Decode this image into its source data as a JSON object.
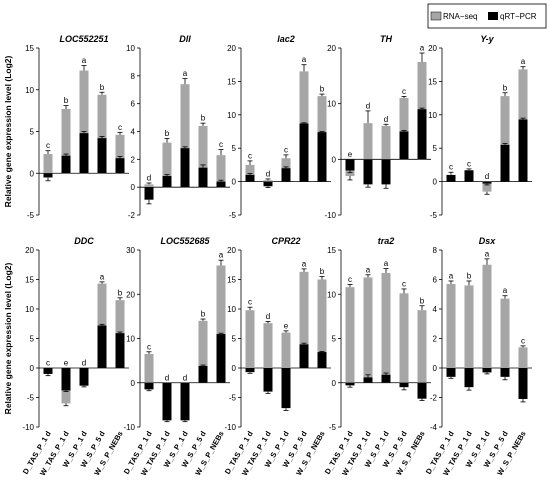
{
  "legend": {
    "rna_label": "RNA−seq",
    "qrt_label": "qRT−PCR",
    "rna_color": "#a6a6a6",
    "qrt_color": "#000000"
  },
  "ylabel": "Relative gene expression level (Log2)",
  "categories": [
    "D_TAS_P_1 d",
    "W_TAS_P_1 d",
    "W_S_P_1 d",
    "W_S_P_5 d",
    "W_S_P_NEBs"
  ],
  "chart_data": [
    {
      "type": "bar",
      "title": "LOC552251",
      "ylim": [
        -5,
        15
      ],
      "yticks": [
        -5,
        0,
        5,
        10,
        15
      ],
      "categories": [
        "D_TAS_P_1 d",
        "W_TAS_P_1 d",
        "W_S_P_1 d",
        "W_S_P_5 d",
        "W_S_P_NEBs"
      ],
      "series": [
        {
          "name": "RNA−seq",
          "values": [
            2.3,
            7.7,
            12.3,
            9.4,
            4.6
          ],
          "errors": [
            0.4,
            0.4,
            0.6,
            0.3,
            0.3
          ]
        },
        {
          "name": "qRT−PCR",
          "values": [
            -0.5,
            2.1,
            4.8,
            4.2,
            1.8
          ],
          "errors": [
            0.4,
            0.2,
            0.2,
            0.2,
            0.2
          ]
        }
      ],
      "labels": [
        "c",
        "b",
        "a",
        "b",
        "c"
      ]
    },
    {
      "type": "bar",
      "title": "Dll",
      "ylim": [
        -2,
        10
      ],
      "yticks": [
        -2,
        0,
        2,
        4,
        6,
        8,
        10
      ],
      "categories": [
        "D_TAS_P_1 d",
        "W_TAS_P_1 d",
        "W_S_P_1 d",
        "W_S_P_5 d",
        "W_S_P_NEBs"
      ],
      "series": [
        {
          "name": "RNA−seq",
          "values": [
            0.2,
            3.2,
            7.4,
            4.4,
            2.3
          ],
          "errors": [
            0.1,
            0.3,
            0.4,
            0.2,
            0.4
          ]
        },
        {
          "name": "qRT−PCR",
          "values": [
            -0.9,
            0.8,
            2.8,
            1.4,
            0.4
          ],
          "errors": [
            0.3,
            0.1,
            0.1,
            0.2,
            0.1
          ]
        }
      ],
      "labels": [
        "d",
        "b",
        "a",
        "b",
        "c"
      ]
    },
    {
      "type": "bar",
      "title": "lac2",
      "ylim": [
        -5,
        20
      ],
      "yticks": [
        -5,
        0,
        5,
        10,
        15,
        20
      ],
      "categories": [
        "D_TAS_P_1 d",
        "W_TAS_P_1 d",
        "W_S_P_1 d",
        "W_S_P_5 d",
        "W_S_P_NEBs"
      ],
      "series": [
        {
          "name": "RNA−seq",
          "values": [
            2.5,
            0.2,
            3.5,
            16.5,
            12.8
          ],
          "errors": [
            0.6,
            0.2,
            0.5,
            1.0,
            0.3
          ]
        },
        {
          "name": "qRT−PCR",
          "values": [
            1.0,
            -0.7,
            2.0,
            8.7,
            7.4
          ],
          "errors": [
            0.2,
            0.2,
            0.2,
            0.1,
            0.1
          ]
        }
      ],
      "labels": [
        "c",
        "d",
        "c",
        "a",
        "b"
      ]
    },
    {
      "type": "bar",
      "title": "TH",
      "ylim": [
        -10,
        20
      ],
      "yticks": [
        -10,
        0,
        10,
        20
      ],
      "categories": [
        "D_TAS_P_1 d",
        "W_TAS_P_1 d",
        "W_S_P_1 d",
        "W_S_P_5 d",
        "W_S_P_NEBs"
      ],
      "series": [
        {
          "name": "RNA−seq",
          "values": [
            -3.0,
            6.5,
            6.0,
            11.0,
            17.5
          ],
          "errors": [
            0.7,
            2.2,
            0.3,
            0.3,
            1.6
          ]
        },
        {
          "name": "qRT−PCR",
          "values": [
            -2.0,
            -4.5,
            -4.5,
            5.0,
            9.0
          ],
          "errors": [
            0.4,
            0.5,
            0.7,
            0.2,
            0.2
          ]
        }
      ],
      "labels": [
        "e",
        "d",
        "d",
        "c",
        "a"
      ]
    },
    {
      "type": "bar",
      "title": "Y-y",
      "ylim": [
        -5,
        20
      ],
      "yticks": [
        -5,
        0,
        5,
        10,
        15,
        20
      ],
      "categories": [
        "D_TAS_P_1 d",
        "W_TAS_P_1 d",
        "W_S_P_1 d",
        "W_S_P_5 d",
        "W_S_P_NEBs"
      ],
      "series": [
        {
          "name": "RNA−seq",
          "values": [
            0.3,
            0.5,
            -1.5,
            12.8,
            16.8
          ],
          "errors": [
            0.1,
            0.2,
            0.4,
            0.5,
            0.4
          ]
        },
        {
          "name": "qRT−PCR",
          "values": [
            1.0,
            1.7,
            -0.3,
            5.5,
            9.3
          ],
          "errors": [
            0.4,
            0.2,
            0.2,
            0.2,
            0.2
          ]
        }
      ],
      "labels": [
        "c",
        "c",
        "d",
        "b",
        "a"
      ]
    },
    {
      "type": "bar",
      "title": "DDC",
      "ylim": [
        -10,
        20
      ],
      "yticks": [
        -10,
        -5,
        0,
        5,
        10,
        15,
        20
      ],
      "categories": [
        "D_TAS_P_1 d",
        "W_TAS_P_1 d",
        "W_S_P_1 d",
        "W_S_P_5 d",
        "W_S_P_NEBs"
      ],
      "series": [
        {
          "name": "RNA−seq",
          "values": [
            -0.7,
            -6.0,
            -2.5,
            14.3,
            11.5
          ],
          "errors": [
            0.2,
            0.4,
            0.3,
            0.3,
            0.4
          ]
        },
        {
          "name": "qRT−PCR",
          "values": [
            -1.0,
            -3.8,
            -3.0,
            7.2,
            5.9
          ],
          "errors": [
            0.3,
            0.2,
            0.2,
            0.2,
            0.2
          ]
        }
      ],
      "labels": [
        "c",
        "e",
        "d",
        "a",
        "b"
      ]
    },
    {
      "type": "bar",
      "title": "LOC552685",
      "ylim": [
        -10,
        30
      ],
      "yticks": [
        -10,
        0,
        10,
        20,
        30
      ],
      "categories": [
        "D_TAS_P_1 d",
        "W_TAS_P_1 d",
        "W_S_P_1 d",
        "W_S_P_5 d",
        "W_S_P_NEBs"
      ],
      "series": [
        {
          "name": "RNA−seq",
          "values": [
            6.5,
            -0.5,
            -0.5,
            14.0,
            26.5
          ],
          "errors": [
            0.5,
            0.2,
            0.2,
            0.4,
            1.2
          ]
        },
        {
          "name": "qRT−PCR",
          "values": [
            -1.5,
            -8.5,
            -8.5,
            3.8,
            11.0
          ],
          "errors": [
            0.3,
            0.3,
            0.3,
            0.2,
            0.2
          ]
        }
      ],
      "labels": [
        "c",
        "d",
        "d",
        "b",
        "a"
      ]
    },
    {
      "type": "bar",
      "title": "CPR22",
      "ylim": [
        -10,
        20
      ],
      "yticks": [
        -10,
        -5,
        0,
        5,
        10,
        15,
        20
      ],
      "categories": [
        "D_TAS_P_1 d",
        "W_TAS_P_1 d",
        "W_S_P_1 d",
        "W_S_P_5 d",
        "W_S_P_NEBs"
      ],
      "series": [
        {
          "name": "RNA−seq",
          "values": [
            9.8,
            7.6,
            6.0,
            16.3,
            15.0
          ],
          "errors": [
            0.5,
            0.3,
            0.3,
            0.5,
            0.5
          ]
        },
        {
          "name": "qRT−PCR",
          "values": [
            -0.7,
            -4.0,
            -6.8,
            4.0,
            2.7
          ],
          "errors": [
            0.2,
            0.3,
            0.4,
            0.2,
            0.1
          ]
        }
      ],
      "labels": [
        "c",
        "d",
        "e",
        "a",
        "b"
      ]
    },
    {
      "type": "bar",
      "title": "tra2",
      "ylim": [
        -5,
        15
      ],
      "yticks": [
        -5,
        0,
        5,
        10,
        15
      ],
      "categories": [
        "D_TAS_P_1 d",
        "W_TAS_P_1 d",
        "W_S_P_1 d",
        "W_S_P_5 d",
        "W_S_P_NEBs"
      ],
      "series": [
        {
          "name": "RNA−seq",
          "values": [
            10.8,
            11.9,
            12.4,
            10.1,
            8.2
          ],
          "errors": [
            0.3,
            0.3,
            0.5,
            0.5,
            0.5
          ]
        },
        {
          "name": "qRT−PCR",
          "values": [
            -0.3,
            0.6,
            0.9,
            -0.5,
            -1.8
          ],
          "errors": [
            0.2,
            0.3,
            0.2,
            0.3,
            0.2
          ]
        }
      ],
      "labels": [
        "c",
        "a",
        "a",
        "c",
        "b"
      ]
    },
    {
      "type": "bar",
      "title": "Dsx",
      "ylim": [
        -4,
        8
      ],
      "yticks": [
        -4,
        -2,
        0,
        2,
        4,
        6,
        8
      ],
      "categories": [
        "D_TAS_P_1 d",
        "W_TAS_P_1 d",
        "W_S_P_1 d",
        "W_S_P_5 d",
        "W_S_P_NEBs"
      ],
      "series": [
        {
          "name": "RNA−seq",
          "values": [
            5.7,
            5.6,
            7.0,
            4.7,
            1.4
          ],
          "errors": [
            0.2,
            0.3,
            0.4,
            0.2,
            0.1
          ]
        },
        {
          "name": "qRT−PCR",
          "values": [
            -0.6,
            -1.3,
            -0.3,
            -0.6,
            -2.1
          ],
          "errors": [
            0.1,
            0.2,
            0.1,
            0.2,
            0.2
          ]
        }
      ],
      "labels": [
        "a",
        "b",
        "a",
        "a",
        "c"
      ]
    }
  ]
}
